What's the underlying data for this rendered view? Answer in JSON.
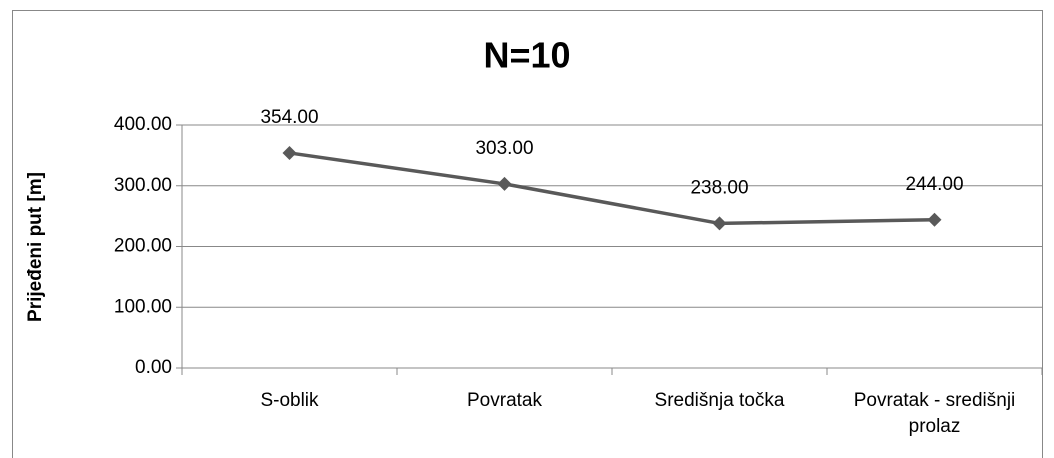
{
  "chart_data": {
    "type": "line",
    "title": "N=10",
    "ylabel": "Prijeđeni put [m]",
    "categories": [
      "S-oblik",
      "Povratak",
      "Središnja točka",
      "Povratak - središnji prolaz"
    ],
    "series": [
      {
        "name": "N=10",
        "color": "#595959",
        "values": [
          354,
          303,
          238,
          244
        ],
        "value_labels": [
          "354.00",
          "303.00",
          "238.00",
          "244.00"
        ]
      }
    ],
    "ylim": [
      0,
      400
    ],
    "yticks": [
      {
        "value": 0,
        "label": "0.00"
      },
      {
        "value": 100,
        "label": "100.00"
      },
      {
        "value": 200,
        "label": "200.00"
      },
      {
        "value": 300,
        "label": "300.00"
      },
      {
        "value": 400,
        "label": "400.00"
      }
    ],
    "grid": true,
    "legend": false
  }
}
